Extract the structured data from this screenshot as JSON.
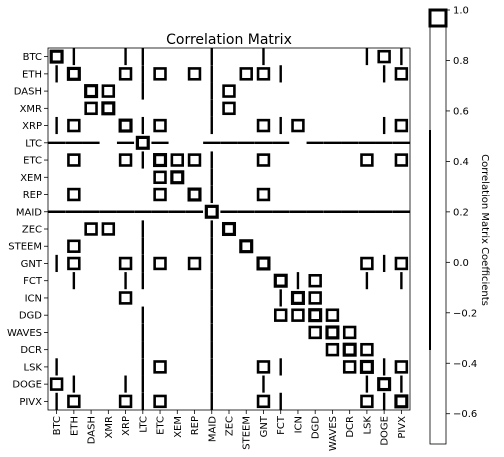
{
  "chart_data": {
    "type": "heatmap",
    "title": "Correlation Matrix",
    "colorbar_label": "Correlation Matrix Coefficients",
    "colorbar_ticks": [
      1.0,
      0.8,
      0.6,
      0.4,
      0.2,
      0.0,
      -0.2,
      -0.4,
      -0.6
    ],
    "colorbar_tick_labels": [
      "1.0",
      "0.8",
      "0.6",
      "0.4",
      "0.2",
      "0.0",
      "−0.2",
      "−0.4",
      "−0.6"
    ],
    "colorbar_range": [
      -0.72,
      1.0
    ],
    "labels": [
      "BTC",
      "ETH",
      "DASH",
      "XMR",
      "XRP",
      "LTC",
      "ETC",
      "XEM",
      "REP",
      "MAID",
      "ZEC",
      "STEEM",
      "GNT",
      "FCT",
      "ICN",
      "DGD",
      "WAVES",
      "DCR",
      "LSK",
      "DOGE",
      "PIVX"
    ],
    "strong_pairs": [
      [
        "ETH",
        "XRP"
      ],
      [
        "ETH",
        "ETC"
      ],
      [
        "ETH",
        "REP"
      ],
      [
        "ETH",
        "GNT"
      ],
      [
        "ETH",
        "PIVX"
      ],
      [
        "DASH",
        "XMR"
      ],
      [
        "DASH",
        "ZEC"
      ],
      [
        "XMR",
        "ZEC"
      ],
      [
        "XRP",
        "GNT"
      ],
      [
        "XRP",
        "ETC"
      ],
      [
        "XRP",
        "PIVX"
      ],
      [
        "XRP",
        "ICN"
      ],
      [
        "ETC",
        "REP"
      ],
      [
        "ETC",
        "GNT"
      ],
      [
        "ETC",
        "PIVX"
      ],
      [
        "ETC",
        "LSK"
      ],
      [
        "XEM",
        "ETC"
      ],
      [
        "REP",
        "GNT"
      ],
      [
        "GNT",
        "PIVX"
      ],
      [
        "GNT",
        "LSK"
      ],
      [
        "LSK",
        "PIVX"
      ],
      [
        "DGD",
        "WAVES"
      ],
      [
        "WAVES",
        "DCR"
      ],
      [
        "DCR",
        "LSK"
      ],
      [
        "FCT",
        "DGD"
      ],
      [
        "DOGE",
        "BTC"
      ],
      [
        "STEEM",
        "ETH"
      ],
      [
        "ICN",
        "DGD"
      ]
    ],
    "negative_pairs": [
      [
        "MAID",
        "BTC"
      ],
      [
        "MAID",
        "ETH"
      ],
      [
        "MAID",
        "DASH"
      ],
      [
        "MAID",
        "XMR"
      ],
      [
        "MAID",
        "XRP"
      ],
      [
        "MAID",
        "LTC"
      ],
      [
        "MAID",
        "ETC"
      ],
      [
        "MAID",
        "XEM"
      ],
      [
        "MAID",
        "REP"
      ],
      [
        "MAID",
        "ZEC"
      ],
      [
        "MAID",
        "STEEM"
      ],
      [
        "MAID",
        "GNT"
      ],
      [
        "MAID",
        "FCT"
      ],
      [
        "MAID",
        "ICN"
      ],
      [
        "MAID",
        "DGD"
      ],
      [
        "MAID",
        "WAVES"
      ],
      [
        "MAID",
        "DCR"
      ],
      [
        "MAID",
        "LSK"
      ],
      [
        "MAID",
        "DOGE"
      ],
      [
        "MAID",
        "PIVX"
      ],
      [
        "LTC",
        "BTC"
      ],
      [
        "LTC",
        "ETH"
      ],
      [
        "LTC",
        "DASH"
      ],
      [
        "LTC",
        "XRP"
      ],
      [
        "LTC",
        "ETC"
      ],
      [
        "LTC",
        "ZEC"
      ],
      [
        "LTC",
        "STEEM"
      ],
      [
        "LTC",
        "GNT"
      ],
      [
        "LTC",
        "FCT"
      ],
      [
        "LTC",
        "DGD"
      ],
      [
        "LTC",
        "WAVES"
      ],
      [
        "LTC",
        "DCR"
      ],
      [
        "LTC",
        "LSK"
      ],
      [
        "LTC",
        "DOGE"
      ],
      [
        "LTC",
        "PIVX"
      ],
      [
        "BTC",
        "ETH"
      ],
      [
        "BTC",
        "XRP"
      ],
      [
        "BTC",
        "GNT"
      ],
      [
        "BTC",
        "LSK"
      ],
      [
        "BTC",
        "PIVX"
      ],
      [
        "DOGE",
        "ETH"
      ],
      [
        "DOGE",
        "XRP"
      ],
      [
        "DOGE",
        "GNT"
      ],
      [
        "DOGE",
        "LSK"
      ],
      [
        "DOGE",
        "PIVX"
      ],
      [
        "FCT",
        "ETH"
      ],
      [
        "FCT",
        "XRP"
      ],
      [
        "FCT",
        "ICN"
      ],
      [
        "FCT",
        "LSK"
      ],
      [
        "FCT",
        "PIVX"
      ]
    ]
  }
}
